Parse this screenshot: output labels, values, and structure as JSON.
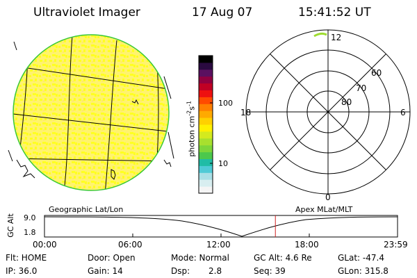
{
  "header": {
    "instrument": "Ultraviolet Imager",
    "date": "17 Aug 07",
    "time": "15:41:52 UT"
  },
  "colorbar": {
    "label": "photon cm",
    "label_exp1": "-2",
    "label_s": "s",
    "label_exp2": "-1",
    "ticks": [
      {
        "value": 100,
        "label": "100"
      },
      {
        "value": 10,
        "label": "10"
      }
    ],
    "colors": [
      "#f5f5f5",
      "#d8eef0",
      "#a9dfe6",
      "#4fcad6",
      "#20bca6",
      "#4cc84c",
      "#7ed63a",
      "#a8e02e",
      "#d4ea1e",
      "#fff000",
      "#ffd000",
      "#ffaa00",
      "#ff8000",
      "#ff4a00",
      "#ee1010",
      "#c00024",
      "#900040",
      "#5a1060",
      "#2a0a40",
      "#000000"
    ]
  },
  "geo_panel": {
    "label": "Geographic Lat/Lon",
    "fill_color": "#fff36e",
    "speckle_color": "#ffff00",
    "limb_color": "#38c838"
  },
  "polar_panel": {
    "label": "Apex MLat/MLT",
    "mlt_labels": {
      "top": "12",
      "right": "6",
      "bottom": "0",
      "left": "18"
    },
    "lat_labels": [
      "60",
      "70",
      "80"
    ]
  },
  "timeline": {
    "axis_label": "GC Alt",
    "y_ticks": [
      "9.0",
      "1.8"
    ],
    "x_ticks": [
      "00:00",
      "06:00",
      "12:00",
      "18:00",
      "23:59"
    ],
    "marker_time_fraction": 0.654,
    "marker_color": "#d02020"
  },
  "status": {
    "flt": "Flt: HOME",
    "door": "Door: Open",
    "mode": "Mode: Normal",
    "gc_alt": "GC Alt: 4.6 Re",
    "glat": "GLat: -47.4",
    "ip": "IP: 36.0",
    "gain": "Gain: 14",
    "dsp_label": "Dsp:",
    "dsp_value": "2.8",
    "seq": "Seq: 39",
    "glon": "GLon: 315.8"
  }
}
